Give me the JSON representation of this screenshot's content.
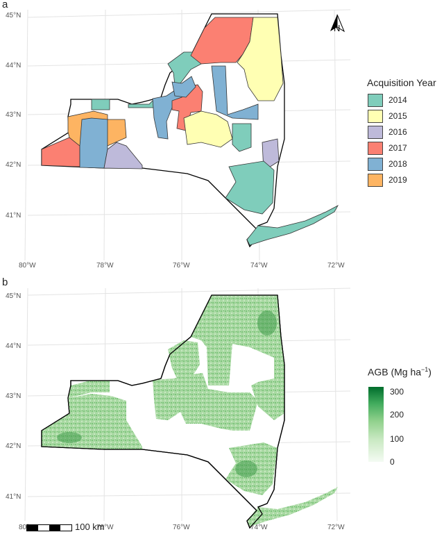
{
  "panels": {
    "a": {
      "letter": "a"
    },
    "b": {
      "letter": "b"
    }
  },
  "axes": {
    "lat_labels": [
      "45°N",
      "44°N",
      "43°N",
      "42°N",
      "41°N"
    ],
    "lon_labels": [
      "80°W",
      "78°W",
      "76°W",
      "74°W",
      "72°W"
    ]
  },
  "north_arrow": {
    "label": "N"
  },
  "legend_year": {
    "title": "Acquisition Year",
    "items": [
      {
        "label": "2014",
        "color": "#7fcdbb"
      },
      {
        "label": "2015",
        "color": "#ffffb3"
      },
      {
        "label": "2016",
        "color": "#bebada"
      },
      {
        "label": "2017",
        "color": "#fb8072"
      },
      {
        "label": "2018",
        "color": "#80b1d3"
      },
      {
        "label": "2019",
        "color": "#fdb462"
      }
    ]
  },
  "legend_agb": {
    "title": "AGB (Mg ha",
    "title_sup": "−1",
    "title_end": ")",
    "ticks": [
      "300",
      "200",
      "100",
      "0"
    ],
    "color_low": "#f4fbf3",
    "color_high": "#006d2c"
  },
  "scalebar": {
    "label": "100 km"
  }
}
